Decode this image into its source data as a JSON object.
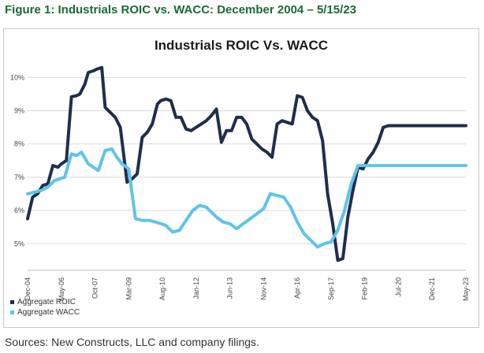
{
  "figure_title": "Figure 1: Industrials ROIC vs. WACC: December 2004 – 5/15/23",
  "source_note": "Sources: New Constructs, LLC and company filings.",
  "colors": {
    "roic": "#1f2e4e",
    "wacc": "#5ec3ec",
    "title": "#1a6a34"
  },
  "chart_data": {
    "type": "line",
    "title": "Industrials ROIC Vs. WACC",
    "xlabel": "",
    "ylabel": "",
    "x_tick_labels": [
      "Dec-04",
      "May-06",
      "Oct-07",
      "Mar-09",
      "Aug-10",
      "Jan-12",
      "Jun-13",
      "Nov-14",
      "Apr-16",
      "Sep-17",
      "Feb-19",
      "Jul-20",
      "Dec-21",
      "May-23"
    ],
    "y_tick_labels": [
      "5%",
      "6%",
      "7%",
      "8%",
      "9%",
      "10%"
    ],
    "y_ticks": [
      5,
      6,
      7,
      8,
      9,
      10
    ],
    "ylim": [
      4.2,
      10.6
    ],
    "xlim": [
      0,
      13
    ],
    "grid": "horizontal",
    "legend_position": "bottom-left",
    "series": [
      {
        "name": "Aggregate ROIC",
        "color": "#1f2e4e",
        "x": [
          0,
          0.15,
          0.3,
          0.45,
          0.6,
          0.75,
          0.9,
          1.0,
          1.15,
          1.3,
          1.45,
          1.55,
          1.7,
          1.8,
          1.95,
          2.05,
          2.2,
          2.3,
          2.45,
          2.6,
          2.75,
          2.95,
          3.1,
          3.25,
          3.4,
          3.55,
          3.7,
          3.85,
          3.95,
          4.1,
          4.25,
          4.4,
          4.55,
          4.7,
          4.85,
          5.0,
          5.15,
          5.3,
          5.45,
          5.6,
          5.75,
          5.9,
          6.05,
          6.2,
          6.35,
          6.5,
          6.65,
          6.8,
          6.95,
          7.1,
          7.25,
          7.4,
          7.55,
          7.7,
          7.85,
          8.0,
          8.15,
          8.3,
          8.45,
          8.6,
          8.75,
          8.9,
          9.05,
          9.2,
          9.35,
          9.5,
          9.65,
          9.8,
          9.95,
          10.1,
          10.25,
          10.4,
          10.55,
          10.7,
          10.85,
          11.0,
          11.15,
          11.3,
          11.45,
          11.6,
          11.75,
          11.9,
          12.05,
          12.2,
          12.35,
          12.5,
          12.65,
          12.8,
          13.0
        ],
        "values": [
          5.75,
          6.4,
          6.5,
          6.75,
          6.8,
          7.35,
          7.3,
          7.4,
          7.5,
          9.42,
          9.45,
          9.5,
          9.8,
          10.15,
          10.2,
          10.25,
          10.3,
          9.1,
          8.95,
          8.8,
          8.5,
          6.85,
          6.95,
          7.1,
          8.2,
          8.35,
          8.6,
          9.2,
          9.3,
          9.35,
          9.3,
          8.8,
          8.8,
          8.45,
          8.4,
          8.5,
          8.6,
          8.7,
          8.85,
          9.05,
          8.05,
          8.4,
          8.4,
          8.8,
          8.8,
          8.6,
          8.15,
          8.0,
          7.85,
          7.75,
          7.6,
          8.6,
          8.7,
          8.65,
          8.6,
          9.45,
          9.4,
          9.0,
          8.8,
          8.7,
          8.1,
          6.5,
          5.6,
          4.5,
          4.55,
          5.8,
          6.6,
          7.3,
          7.25,
          7.55,
          7.75,
          8.05,
          8.5,
          8.55,
          8.55,
          8.55,
          8.55,
          8.55,
          8.55,
          8.55,
          8.55,
          8.55,
          8.55,
          8.55,
          8.55,
          8.55,
          8.55,
          8.55,
          8.55
        ],
        "note": "values after x=12.5 held flat for drawing"
      },
      {
        "name": "Aggregate WACC",
        "color": "#5ec3ec",
        "x": [
          0,
          0.2,
          0.4,
          0.6,
          0.8,
          0.95,
          1.1,
          1.3,
          1.45,
          1.6,
          1.8,
          1.95,
          2.1,
          2.3,
          2.5,
          2.65,
          2.8,
          3.0,
          3.2,
          3.4,
          3.6,
          3.8,
          3.95,
          4.1,
          4.3,
          4.5,
          4.7,
          4.9,
          5.1,
          5.3,
          5.45,
          5.6,
          5.8,
          6.0,
          6.2,
          6.4,
          6.6,
          6.8,
          7.0,
          7.2,
          7.4,
          7.6,
          7.8,
          8.0,
          8.2,
          8.4,
          8.6,
          8.8,
          9.0,
          9.2,
          9.4,
          9.6,
          9.8,
          10.0,
          10.2,
          10.4,
          10.6,
          10.8,
          11.0,
          11.2,
          11.4,
          11.6,
          11.8,
          12.0,
          12.2,
          12.4,
          12.6,
          12.8,
          13.0
        ],
        "values": [
          6.5,
          6.55,
          6.6,
          6.7,
          6.9,
          6.95,
          7.0,
          7.7,
          7.65,
          7.75,
          7.4,
          7.3,
          7.2,
          7.8,
          7.85,
          7.6,
          7.4,
          7.25,
          5.75,
          5.7,
          5.7,
          5.65,
          5.6,
          5.55,
          5.35,
          5.4,
          5.7,
          6.0,
          6.15,
          6.1,
          5.95,
          5.8,
          5.65,
          5.6,
          5.45,
          5.6,
          5.75,
          5.9,
          6.05,
          6.5,
          6.45,
          6.4,
          6.1,
          5.65,
          5.3,
          5.1,
          4.9,
          5.0,
          5.05,
          5.4,
          6.0,
          6.8,
          7.35,
          7.35,
          7.35,
          7.35,
          7.35,
          7.35,
          7.35,
          7.35,
          7.35,
          7.35,
          7.35,
          7.35,
          7.35,
          7.35,
          7.35,
          7.35,
          7.35
        ]
      }
    ]
  }
}
